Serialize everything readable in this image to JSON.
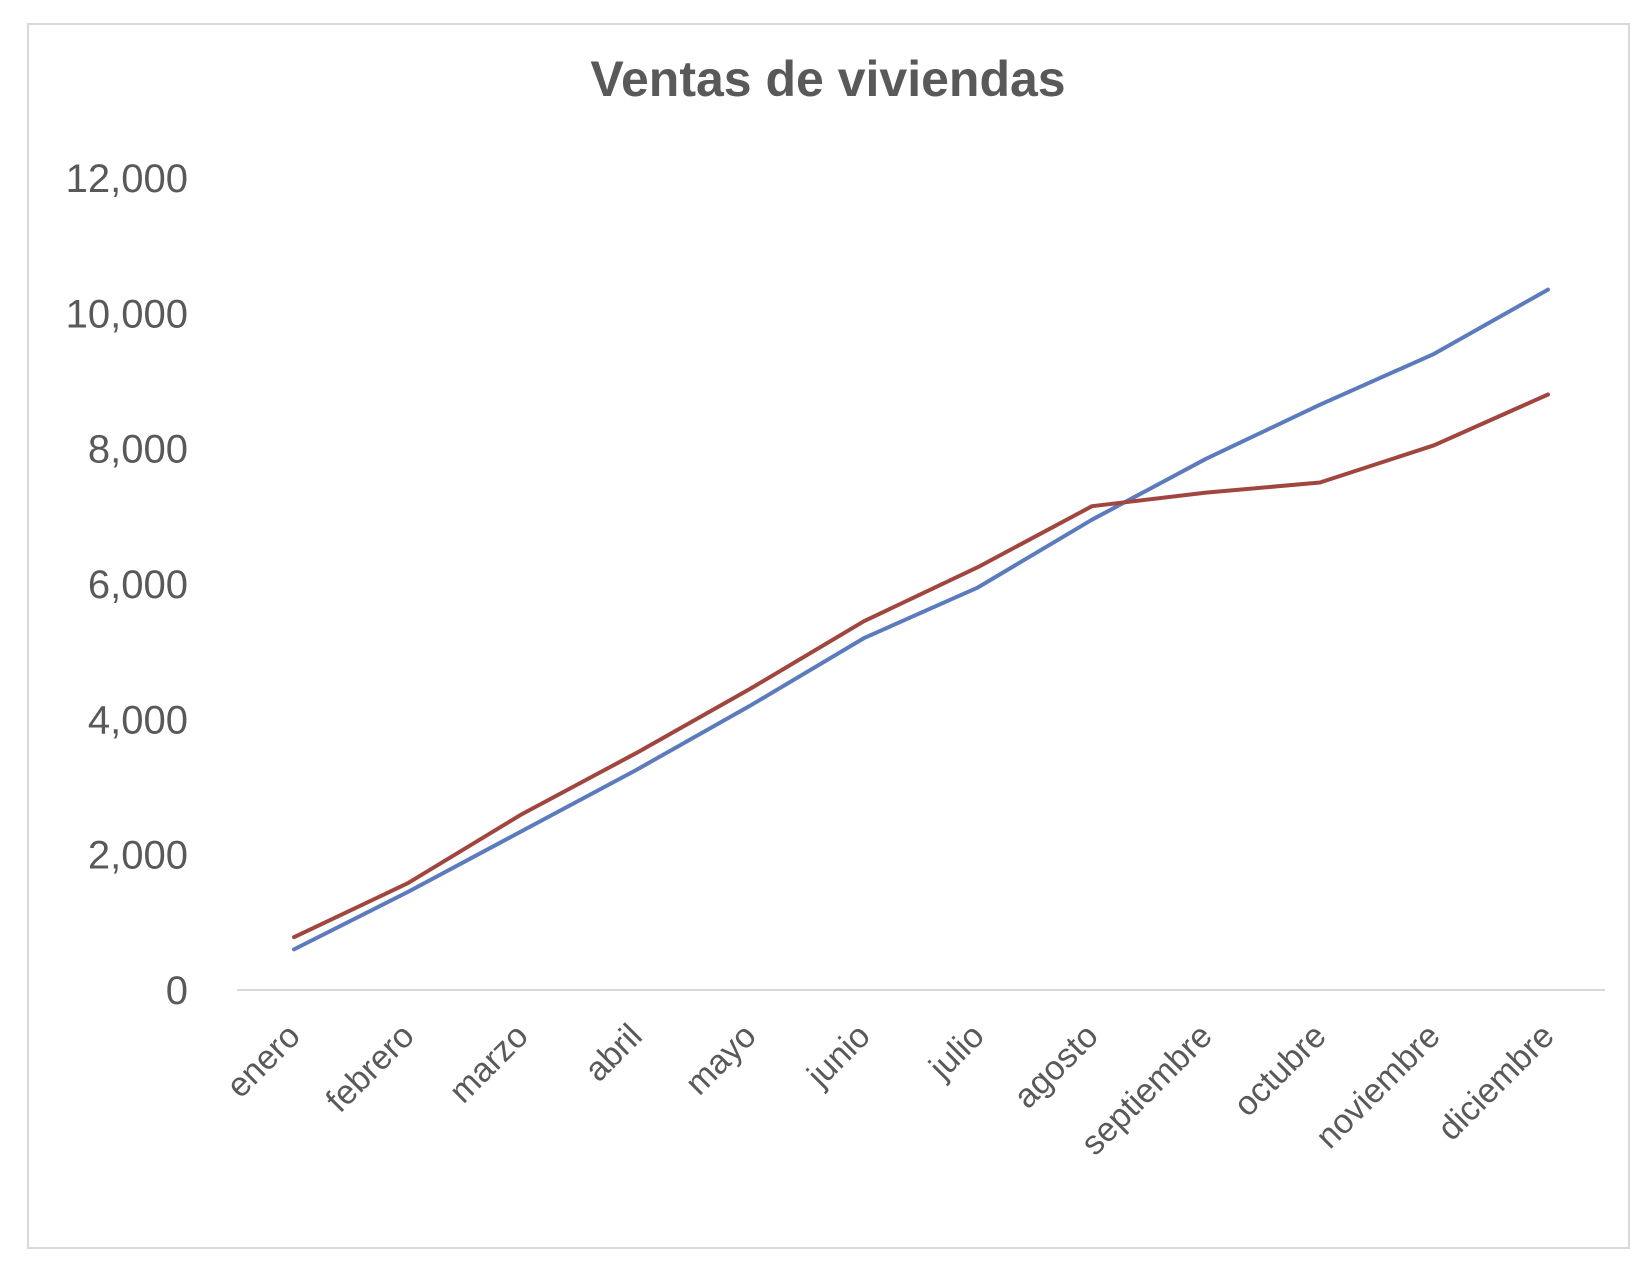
{
  "chart_data": {
    "type": "line",
    "title": "Ventas de viviendas",
    "categories": [
      "enero",
      "febrero",
      "marzo",
      "abril",
      "mayo",
      "junio",
      "julio",
      "agosto",
      "septiembre",
      "octubre",
      "noviembre",
      "diciembre"
    ],
    "series": [
      {
        "color": "#5B7BBD",
        "values": [
          600,
          1450,
          2350,
          3250,
          4200,
          5200,
          5950,
          6950,
          7850,
          8650,
          9400,
          10350
        ]
      },
      {
        "color": "#A0463E",
        "values": [
          780,
          1580,
          2600,
          3500,
          4450,
          5450,
          6250,
          7150,
          7350,
          7500,
          8050,
          8800
        ]
      }
    ],
    "y_ticks": [
      "0",
      "2,000",
      "4,000",
      "6,000",
      "8,000",
      "10,000",
      "12,000"
    ],
    "ylim": [
      0,
      12000
    ],
    "grid": false,
    "legend": "none"
  }
}
